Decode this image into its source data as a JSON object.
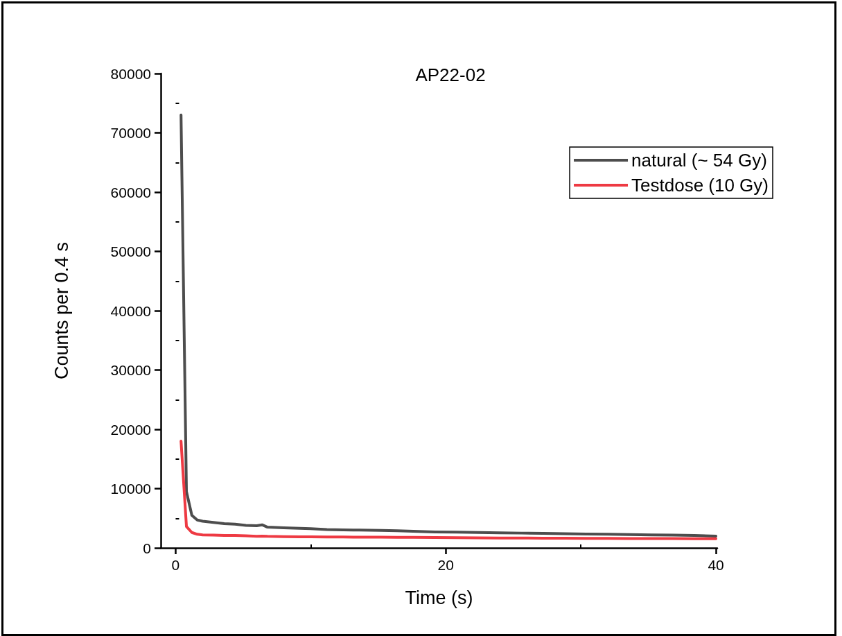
{
  "chart_data": {
    "type": "line",
    "title": "AP22-02",
    "xlabel": "Time (s)",
    "ylabel": "Counts per 0.4 s",
    "x": [
      0.4,
      0.8,
      1.2,
      1.6,
      2,
      2.8,
      3.6,
      4.4,
      5.2,
      6,
      6.4,
      6.8,
      8,
      9.2,
      10,
      11.2,
      12.4,
      13.6,
      15.2,
      16.4,
      17.6,
      19.2,
      20.8,
      22.4,
      24,
      25.6,
      27.2,
      28.8,
      30.4,
      32,
      33.6,
      35.2,
      36.8,
      38.4,
      40
    ],
    "series": [
      {
        "name": "natural (~ 54 Gy)",
        "color": "#4d4d4d",
        "values": [
          73000,
          9500,
          5500,
          4700,
          4500,
          4300,
          4100,
          4000,
          3800,
          3750,
          3900,
          3500,
          3400,
          3300,
          3250,
          3100,
          3050,
          3000,
          2950,
          2900,
          2800,
          2700,
          2650,
          2600,
          2550,
          2500,
          2450,
          2400,
          2350,
          2300,
          2250,
          2200,
          2150,
          2100,
          2000
        ]
      },
      {
        "name": "Testdose (10 Gy)",
        "color": "#ee3a43",
        "values": [
          18000,
          3600,
          2600,
          2300,
          2200,
          2150,
          2100,
          2100,
          2050,
          1950,
          2000,
          1950,
          1900,
          1880,
          1870,
          1850,
          1830,
          1820,
          1800,
          1790,
          1780,
          1750,
          1720,
          1700,
          1680,
          1660,
          1650,
          1630,
          1620,
          1600,
          1590,
          1580,
          1570,
          1560,
          1550
        ]
      }
    ],
    "xlim": [
      -1.1,
      40.1
    ],
    "xticks": [
      0,
      {
        "value": 10,
        "label": null
      },
      20,
      {
        "value": 30,
        "label": null
      },
      40
    ],
    "ylim": [
      0,
      80000
    ],
    "yticks": [
      0,
      {
        "value": 5000,
        "label": null
      },
      10000,
      {
        "value": 15000,
        "label": null
      },
      20000,
      {
        "value": 25000,
        "label": null
      },
      30000,
      {
        "value": 35000,
        "label": null
      },
      40000,
      {
        "value": 45000,
        "label": null
      },
      50000,
      {
        "value": 55000,
        "label": null
      },
      60000,
      {
        "value": 65000,
        "label": null
      },
      70000,
      {
        "value": 75000,
        "label": null
      },
      80000
    ],
    "grid": false,
    "legend": "top right",
    "marker": "none",
    "line_style": "solid"
  }
}
